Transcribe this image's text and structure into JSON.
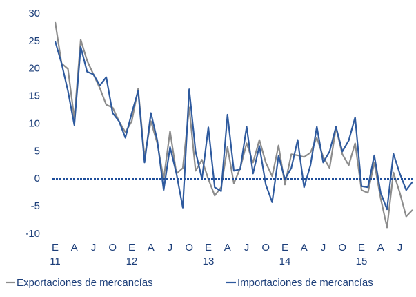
{
  "chart_data": {
    "type": "line",
    "categories": [
      "E\n11",
      null,
      null,
      "A",
      null,
      null,
      "J",
      null,
      null,
      "O",
      null,
      null,
      "E\n12",
      null,
      null,
      "A",
      null,
      null,
      "J",
      null,
      null,
      "O",
      null,
      null,
      "E\n13",
      null,
      null,
      "A",
      null,
      null,
      "J",
      null,
      null,
      "O",
      null,
      null,
      "E\n14",
      null,
      null,
      "A",
      null,
      null,
      "J",
      null,
      null,
      "O",
      null,
      null,
      "E\n15",
      null,
      null,
      "A",
      null,
      null,
      "J",
      null,
      null
    ],
    "series": [
      {
        "name": "Exportaciones de mercancías",
        "color": "#8c8c8c",
        "values": [
          28.5,
          21,
          20,
          11,
          25.3,
          21.5,
          19,
          16.5,
          13.5,
          13,
          10.5,
          8.5,
          10.5,
          16.4,
          4,
          10.5,
          6.5,
          0,
          8.7,
          1,
          2,
          13,
          1.5,
          3.5,
          0,
          -3,
          -1.5,
          5.8,
          -0.8,
          2,
          6.5,
          3,
          7.1,
          3,
          0.5,
          6.1,
          -1,
          4.5,
          4.3,
          4,
          4.8,
          7.5,
          4,
          2,
          9.3,
          4.5,
          2.5,
          6.5,
          -2,
          -2.5,
          3,
          -3.5,
          -8.8,
          1.2,
          -2.5,
          -6.8,
          -5.6
        ]
      },
      {
        "name": "Importaciones de mercancías",
        "color": "#2e5a9e",
        "values": [
          25,
          21,
          16,
          9.8,
          24,
          19.5,
          19,
          17,
          18.5,
          12,
          10.5,
          7.5,
          12,
          16,
          3,
          12,
          7,
          -2,
          5.8,
          1,
          -5.2,
          16.3,
          5,
          0,
          9.4,
          -1.5,
          -2.2,
          11.7,
          1.5,
          1.8,
          9.5,
          1,
          6,
          -1,
          -4.2,
          4.2,
          0,
          2,
          7.1,
          -1.5,
          2.5,
          9.5,
          3,
          5,
          9.5,
          5,
          7,
          11.2,
          -1.3,
          -1.5,
          4.3,
          -2.5,
          -5.5,
          4.6,
          1,
          -2,
          -0.5
        ]
      }
    ],
    "ylim": [
      -10,
      30
    ],
    "yticks": [
      -10,
      -5,
      0,
      5,
      10,
      15,
      20,
      25,
      30
    ],
    "zero_line": true,
    "zero_line_color": "#1f4e9a",
    "grid": false,
    "legend": "bottom"
  }
}
